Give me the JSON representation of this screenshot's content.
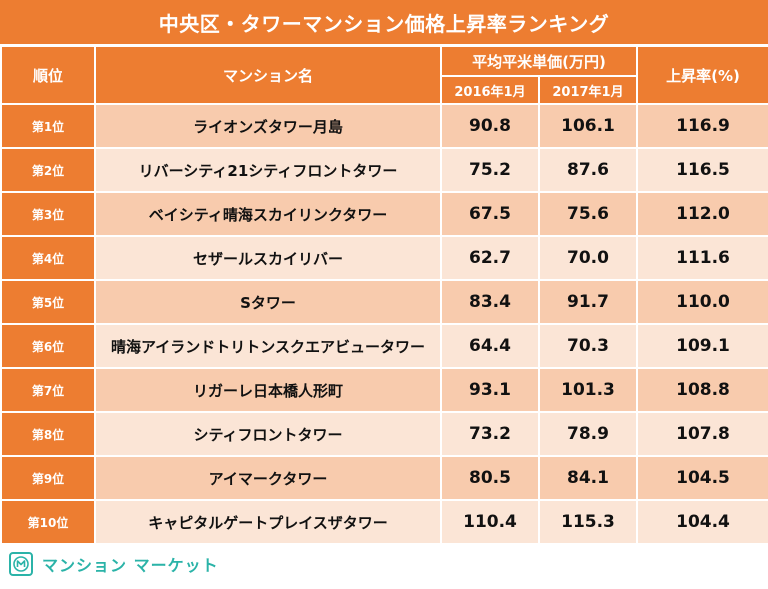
{
  "chart_data": {
    "type": "table",
    "title": "中央区・タワーマンション価格上昇率ランキング",
    "columns": {
      "rank": "順位",
      "name": "マンション名",
      "price_group": "平均平米単価(万円)",
      "year1": "2016年1月",
      "year2": "2017年1月",
      "rate": "上昇率(%)"
    },
    "rows": [
      {
        "rank": "第1位",
        "name": "ライオンズタワー月島",
        "p2016": "90.8",
        "p2017": "106.1",
        "rate": "116.9"
      },
      {
        "rank": "第2位",
        "name": "リバーシティ21シティフロントタワー",
        "p2016": "75.2",
        "p2017": "87.6",
        "rate": "116.5"
      },
      {
        "rank": "第3位",
        "name": "ベイシティ晴海スカイリンクタワー",
        "p2016": "67.5",
        "p2017": "75.6",
        "rate": "112.0"
      },
      {
        "rank": "第4位",
        "name": "セザールスカイリバー",
        "p2016": "62.7",
        "p2017": "70.0",
        "rate": "111.6"
      },
      {
        "rank": "第5位",
        "name": "Sタワー",
        "p2016": "83.4",
        "p2017": "91.7",
        "rate": "110.0"
      },
      {
        "rank": "第6位",
        "name": "晴海アイランドトリトンスクエアビュータワー",
        "p2016": "64.4",
        "p2017": "70.3",
        "rate": "109.1"
      },
      {
        "rank": "第7位",
        "name": "リガーレ日本橋人形町",
        "p2016": "93.1",
        "p2017": "101.3",
        "rate": "108.8"
      },
      {
        "rank": "第8位",
        "name": "シティフロントタワー",
        "p2016": "73.2",
        "p2017": "78.9",
        "rate": "107.8"
      },
      {
        "rank": "第9位",
        "name": "アイマークタワー",
        "p2016": "80.5",
        "p2017": "84.1",
        "rate": "104.5"
      },
      {
        "rank": "第10位",
        "name": "キャピタルゲートプレイスザタワー",
        "p2016": "110.4",
        "p2017": "115.3",
        "rate": "104.4"
      }
    ]
  },
  "colors": {
    "header": "#ED7D31",
    "row_odd": "#F8CBAD",
    "row_even": "#FBE5D6",
    "brand": "#2BB3A8"
  },
  "footer": {
    "brand": "マンション マーケット",
    "logo_icon": "mansion-market-logo-icon"
  }
}
